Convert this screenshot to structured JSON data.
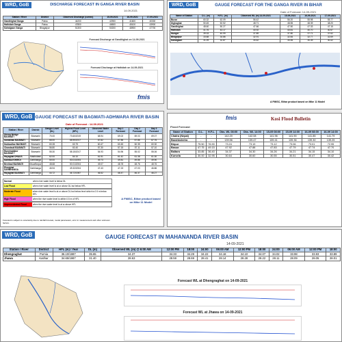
{
  "ganga_discharge": {
    "org": "WRD, GoB",
    "title": "DISCHARGE FORECAST IN GANGA RIVER BASIN",
    "date": "14.09.2021",
    "table": {
      "header": [
        "Station / River",
        "District",
        "Observed Discharge (cumec)",
        "15-09-2021",
        "16-09-2021",
        "17-09-2021"
      ],
      "rows": [
        [
          "Gandhighat Ganga",
          "Patna",
          "44200",
          "42900",
          "41600",
          "40300"
        ],
        [
          "Hathidah Ganga",
          "Patna",
          "47800",
          "46500",
          "45100",
          "43900"
        ],
        [
          "Kahalgaon Ganga",
          "Bhagalpur",
          "51300",
          "50200",
          "48900",
          "47700"
        ]
      ]
    },
    "chart1_title": "Forecast Discharge at Gandhighat on 14-09-2021",
    "chart2_title": "Forecast Discharge at Hathidah on 14-09-2021",
    "logo": "fmis"
  },
  "ganga_gauge": {
    "org": "WRD, GoB",
    "title": "GAUGE FORECAST FOR THE GANGA RIVER IN BIHAR",
    "date": "Date of Forecast: 14-09-2021",
    "table": {
      "header": [
        "Name of Station",
        "D.L. (m)",
        "H.F.L. (m)",
        "Observed WL (m) 14-09-2021",
        "15-09-2021",
        "16-09-2021",
        "17-09-2021"
      ],
      "rows": [
        [
          "Buxar",
          "60.32",
          "62.09",
          "56.42",
          "56.20",
          "55.98",
          "55.77"
        ],
        [
          "Dighaghat",
          "50.45",
          "52.52",
          "48.71",
          "48.55",
          "48.39",
          "48.20"
        ],
        [
          "Gandhighat",
          "48.60",
          "50.27",
          "47.66",
          "47.50",
          "47.33",
          "47.15"
        ],
        [
          "Hathidah",
          "41.76",
          "43.17",
          "40.92",
          "40.81",
          "40.70",
          "40.57"
        ],
        [
          "Munger",
          "39.33",
          "40.99",
          "37.89",
          "37.80",
          "37.71",
          "37.62"
        ],
        [
          "Bhagalpur",
          "33.68",
          "34.86",
          "32.91",
          "32.84",
          "32.77",
          "32.69"
        ],
        [
          "Kahalgaon",
          "31.09",
          "32.87",
          "30.62",
          "30.55",
          "30.49",
          "30.42"
        ]
      ]
    },
    "footer": "A FMISC, Bihar product based on Mike 11 Model"
  },
  "bagmati": {
    "org": "WRD, GoB",
    "title": "GAUGE FORECAST IN BAGMATI-ADHWARA RIVER BASIN",
    "date": "Date of Forecast : 14.09.2021",
    "table": {
      "header": [
        "Station / River",
        "District",
        "Danger Level (DL)",
        "Highest Flood Level (HFL)",
        "Observed Water Level",
        "Day 1 Forecast",
        "Day 2 Forecast",
        "Day 3 Forecast"
      ],
      "rows": [
        [
          "Dheng Bridge BAGMATI",
          "Sitamarhi",
          "70.00",
          "73.60/2019",
          "68.94",
          "69.02",
          "69.03",
          "69.07"
        ],
        [
          "Sonakhan BAGMATI",
          "Sitamarhi",
          "66.00",
          "68.90/2017",
          "67.82",
          "67.85",
          "67.86",
          "67.76"
        ],
        [
          "Dubbadhar BAGMATI",
          "Sitamarhi",
          "60.28",
          "63.75",
          "60.47",
          "60.45",
          "60.35",
          "60.30"
        ],
        [
          "Chandauli BAGMATI",
          "Sitamarhi",
          "56.80",
          "60.40",
          "57.30",
          "57.15",
          "57.11",
          "57.10"
        ],
        [
          "Runnisaidpur BAGMATI",
          "Sitamarhi",
          "55.30",
          "58.15/2017",
          "54.93",
          "54.96",
          "55.02",
          "55.06"
        ],
        [
          "Hayaghat DHAUS",
          "Madhubani",
          "62.00",
          "64.10",
          "61.51",
          "61.42",
          "61.38",
          "61.30"
        ],
        [
          "Kamtaul KHIROI",
          "Darbhanga",
          "50.00",
          "53.01/2004",
          "49.73",
          "49.81",
          "49.86",
          "49.90"
        ],
        [
          "Benibad BAGMATI",
          "Muzaffarpur",
          "48.68",
          "50.01/2004",
          "49.07",
          "48.78",
          "48.76",
          "48.76"
        ],
        [
          "Ekmighat DARBHANGA",
          "Darbhanga",
          "46.94",
          "49.32/2004",
          "47.43",
          "47.23",
          "47.03",
          "46.86"
        ],
        [
          "Hayaghat BAGMATI",
          "Darbhanga",
          "44.72",
          "46.72/1987",
          "46.52",
          "46.47",
          "46.37",
          "46.27"
        ]
      ]
    },
    "legend": [
      {
        "label": "Normal",
        "text": "when river water level is below DL",
        "color": "#ffffff"
      },
      {
        "label": "Low Flood",
        "text": "when river water level is at or above DL but below HFL",
        "color": "#ffff66"
      },
      {
        "label": "Moderate Flood",
        "text": "when river water level is at or above DL but below level which is 0.5 m below HFL",
        "color": "#ffc000"
      },
      {
        "label": "High Flood",
        "text": "when the river water level is within 0.5 m of HFL",
        "color": "#ff66cc"
      },
      {
        "label": "Unprecedented Flood",
        "text": "when the river water level is at or above HFL",
        "color": "#ff0000"
      }
    ],
    "note": "Forecast is subject to uncertainty due to rainfall forecast, model parameters, error in measurement and other unknown factors.",
    "footer": "A FMISC, Bihar product based on Mike 11 Model"
  },
  "kosi": {
    "logo": "fmis",
    "title": "Kosi Flood Bulletin",
    "subtitle": "Flood Forecast",
    "table": {
      "header": [
        "Name of Station",
        "D.L.",
        "H.F.L.",
        "Obs. WL 08:00",
        "Obs. WL 14:00",
        "15-09 08:00",
        "15-09 14:00",
        "16-09 08:00",
        "16-09 14:00"
      ],
      "rows": [
        [
          "Chatra (Nepal)",
          "-",
          "-",
          "142.20",
          "142.08",
          "141.96",
          "141.90",
          "141.85",
          "141.79"
        ],
        [
          "Barahkshetra",
          "-",
          "-",
          "139.56",
          "139.47",
          "139.41",
          "139.36",
          "139.30",
          "139.25"
        ],
        [
          "Birpur",
          "75.50",
          "76.90",
          "73.24",
          "73.19",
          "73.12",
          "73.06",
          "73.01",
          "72.95"
        ],
        [
          "Basua",
          "47.75",
          "49.15",
          "47.92",
          "47.88",
          "47.83",
          "47.79",
          "47.74",
          "47.70"
        ],
        [
          "Baltara",
          "33.85",
          "36.40",
          "34.37",
          "34.30",
          "34.26",
          "34.21",
          "34.15",
          "34.10"
        ],
        [
          "Kursela",
          "30.00",
          "32.95",
          "30.64",
          "30.60",
          "30.55",
          "30.51",
          "30.47",
          "30.42"
        ]
      ]
    }
  },
  "mahananda": {
    "org": "WRD, GoB",
    "title": "GAUGE FORECAST IN MAHANANDA RIVER BASIN",
    "date": "14-09-2021",
    "table": {
      "header": [
        "Station / River",
        "District",
        "HFL (m) / Year",
        "DL (m)",
        "Observed WL (m) @ 6:00 AM",
        "12:00 PM",
        "18:00",
        "24:00",
        "06:00 AM",
        "12:00 PM",
        "18:00",
        "24:00",
        "06:00 AM",
        "12:00 PM",
        "18:00"
      ],
      "rows": [
        [
          "Dhengraghat",
          "Purnia",
          "36.10/1987",
          "35.65",
          "34.37",
          "34.33",
          "34.29",
          "34.22",
          "34.18",
          "34.10",
          "34.07",
          "34.02",
          "33.98",
          "33.93",
          "33.89"
        ],
        [
          "Jhawa",
          "Katihar",
          "34.65/1987",
          "31.40",
          "28.63",
          "28.59",
          "28.69",
          "28.41",
          "28.14",
          "28.28",
          "28.22",
          "28.11",
          "28.09",
          "28.05",
          "28.01"
        ]
      ]
    },
    "chart1_title": "Forecast WL at Dhengraghat on 14-09-2021",
    "chart2_title": "Forecast WL at Jhawa on 14-09-2021"
  }
}
